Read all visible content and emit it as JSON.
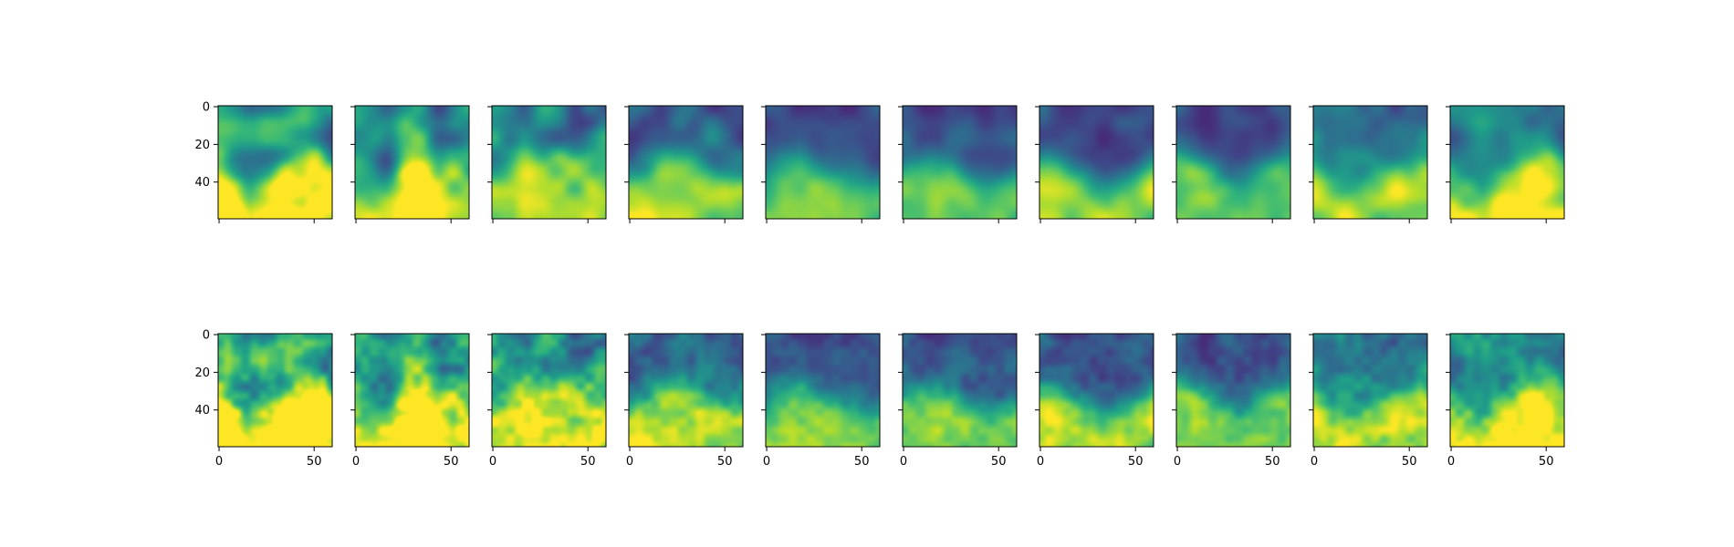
{
  "chart_data": {
    "type": "heatmap",
    "colormap": "viridis",
    "grid": false,
    "image_size": [
      60,
      60
    ],
    "rows": 2,
    "cols": 10,
    "yticks": [
      0,
      20,
      40
    ],
    "xticks": [
      0,
      50
    ],
    "ytick_labels": [
      "0",
      "20",
      "40"
    ],
    "xtick_labels": [
      "0",
      "50"
    ],
    "xlim": [
      -0.5,
      59.5
    ],
    "ylim": [
      59.5,
      -0.5
    ],
    "y_axis_inverted": true,
    "colors": {
      "cmap_low": "#440154",
      "cmap_mid": "#21918c",
      "cmap_high": "#fde725"
    },
    "panels_note_row1": "smooth (low-frequency) fields",
    "panels_note_row2": "textured (high-frequency) fields"
  }
}
